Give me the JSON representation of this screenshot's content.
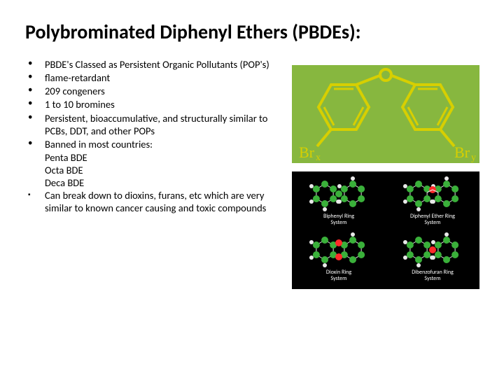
{
  "title": "Polybrominated Diphenyl Ethers (PBDEs):",
  "bullets": [
    {
      "marker": "dot",
      "text": "PBDE's Classed as Persistent Organic Pollutants (POP's)"
    },
    {
      "marker": "dot",
      "text": "flame-retardant"
    },
    {
      "marker": "dot",
      "text": "209 congeners"
    },
    {
      "marker": "dot",
      "text": "1 to 10 bromines"
    },
    {
      "marker": "dot",
      "text": "Persistent, bioaccumulative, and structurally similar to PCBs, DDT, and other POPs"
    },
    {
      "marker": "dot",
      "text": "Banned in most countries:"
    }
  ],
  "sublines": [
    "Penta BDE",
    "Octa BDE",
    "Deca BDE"
  ],
  "final_bullet": {
    "marker": "square",
    "text": "Can break down to dioxins, furans, etc which are very similar to known cancer causing and toxic compounds"
  },
  "diagram1": {
    "bg": "#87b73f",
    "ring_stroke": "#d7cf00",
    "ring_stroke_width": 4,
    "label_left": "Brx",
    "label_right": "Bry",
    "label_color": "#d7cf00",
    "label_fontsize": 20,
    "label_font": "serif"
  },
  "diagram2": {
    "bg": "#000000",
    "cells": [
      {
        "label": "Biphenyl Ring\nSystem",
        "pos": "tl",
        "link": "none"
      },
      {
        "label": "Diphenyl Ether Ring\nSystem",
        "pos": "tr",
        "link": "oxygen"
      },
      {
        "label": "Dioxin Ring\nSystem",
        "pos": "bl",
        "link": "double_oxygen"
      },
      {
        "label": "Dibenzofuran Ring\nSystem",
        "pos": "br",
        "link": "furan"
      }
    ],
    "atom_colors": {
      "carbon": "#3ab03a",
      "hydrogen": "#e8e8e8",
      "oxygen": "#ff2a2a"
    },
    "label_color": "#ffffff",
    "label_fontsize": 8
  }
}
